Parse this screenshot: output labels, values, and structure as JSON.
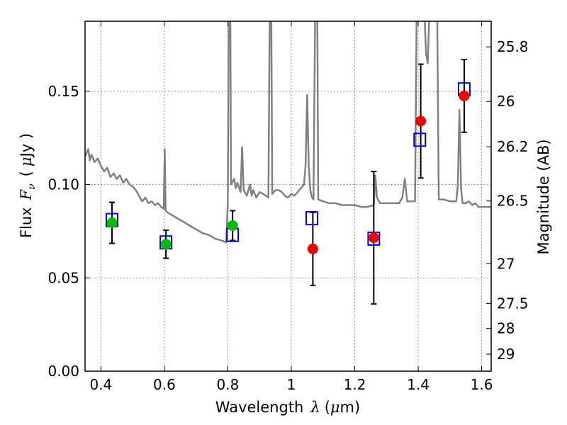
{
  "chart_data": {
    "type": "scatter",
    "xlabel_text": "Wavelength",
    "xlabel_symbol": "λ",
    "xlabel_unit_open": "(",
    "xlabel_unit_mu": "μ",
    "xlabel_unit_rest": "m)",
    "ylabel_text": "Flux",
    "ylabel_symbol": "F",
    "ylabel_subscript": "ν",
    "ylabel_unit_open": "(",
    "ylabel_unit_mu": "μ",
    "ylabel_unit_rest": "Jy )",
    "y2label": "Magnitude (AB)",
    "xlim": [
      0.35,
      1.63
    ],
    "ylim": [
      0.0,
      0.1875
    ],
    "grid": true,
    "x_ticks": [
      {
        "value": 0.4,
        "label": "0.4"
      },
      {
        "value": 0.6,
        "label": "0.6"
      },
      {
        "value": 0.8,
        "label": "0.8"
      },
      {
        "value": 1.0,
        "label": "1"
      },
      {
        "value": 1.2,
        "label": "1.2"
      },
      {
        "value": 1.4,
        "label": "1.4"
      },
      {
        "value": 1.6,
        "label": "1.6"
      }
    ],
    "y_ticks": [
      {
        "value": 0.0,
        "label": "0.00"
      },
      {
        "value": 0.05,
        "label": "0.05"
      },
      {
        "value": 0.1,
        "label": "0.10"
      },
      {
        "value": 0.15,
        "label": "0.15"
      }
    ],
    "y2_ticks": [
      {
        "mag": 25.8,
        "label": "25.8"
      },
      {
        "mag": 26.0,
        "label": "26"
      },
      {
        "mag": 26.2,
        "label": "26.2"
      },
      {
        "mag": 26.5,
        "label": "26.5"
      },
      {
        "mag": 27.0,
        "label": "27"
      },
      {
        "mag": 27.5,
        "label": "27.5"
      },
      {
        "mag": 28.0,
        "label": "28"
      },
      {
        "mag": 29.0,
        "label": "29"
      }
    ],
    "colors": {
      "sed": "#808080",
      "model": "#0000cc",
      "green": "#00bb00",
      "red": "#ee0000",
      "errorbar": "#000000",
      "grid": "#555555"
    },
    "sed_model": [
      [
        0.35,
        0.115
      ],
      [
        0.36,
        0.119
      ],
      [
        0.365,
        0.113
      ],
      [
        0.37,
        0.116
      ],
      [
        0.38,
        0.112
      ],
      [
        0.39,
        0.114
      ],
      [
        0.4,
        0.11
      ],
      [
        0.41,
        0.107
      ],
      [
        0.42,
        0.109
      ],
      [
        0.43,
        0.104
      ],
      [
        0.44,
        0.106
      ],
      [
        0.45,
        0.103
      ],
      [
        0.46,
        0.105
      ],
      [
        0.47,
        0.101
      ],
      [
        0.48,
        0.103
      ],
      [
        0.49,
        0.1
      ],
      [
        0.5,
        0.099
      ],
      [
        0.51,
        0.097
      ],
      [
        0.52,
        0.094
      ],
      [
        0.53,
        0.091
      ],
      [
        0.54,
        0.093
      ],
      [
        0.55,
        0.09
      ],
      [
        0.56,
        0.091
      ],
      [
        0.57,
        0.089
      ],
      [
        0.58,
        0.09
      ],
      [
        0.59,
        0.088
      ],
      [
        0.598,
        0.087
      ],
      [
        0.601,
        0.119
      ],
      [
        0.604,
        0.086
      ],
      [
        0.61,
        0.085
      ],
      [
        0.62,
        0.084
      ],
      [
        0.64,
        0.082
      ],
      [
        0.66,
        0.08
      ],
      [
        0.68,
        0.078
      ],
      [
        0.7,
        0.076
      ],
      [
        0.72,
        0.074
      ],
      [
        0.74,
        0.073
      ],
      [
        0.76,
        0.071
      ],
      [
        0.78,
        0.07
      ],
      [
        0.795,
        0.069
      ],
      [
        0.8,
        0.09
      ],
      [
        0.803,
        0.19
      ],
      [
        0.808,
        0.19
      ],
      [
        0.81,
        0.1
      ],
      [
        0.82,
        0.103
      ],
      [
        0.825,
        0.098
      ],
      [
        0.83,
        0.101
      ],
      [
        0.84,
        0.096
      ],
      [
        0.845,
        0.12
      ],
      [
        0.85,
        0.097
      ],
      [
        0.86,
        0.094
      ],
      [
        0.87,
        0.1
      ],
      [
        0.875,
        0.094
      ],
      [
        0.88,
        0.097
      ],
      [
        0.89,
        0.093
      ],
      [
        0.9,
        0.096
      ],
      [
        0.91,
        0.095
      ],
      [
        0.92,
        0.094
      ],
      [
        0.928,
        0.093
      ],
      [
        0.932,
        0.19
      ],
      [
        0.937,
        0.19
      ],
      [
        0.94,
        0.095
      ],
      [
        0.95,
        0.097
      ],
      [
        0.96,
        0.097
      ],
      [
        0.97,
        0.096
      ],
      [
        0.98,
        0.094
      ],
      [
        0.99,
        0.093
      ],
      [
        1.0,
        0.095
      ],
      [
        1.01,
        0.094
      ],
      [
        1.02,
        0.096
      ],
      [
        1.03,
        0.098
      ],
      [
        1.04,
        0.1
      ],
      [
        1.045,
        0.11
      ],
      [
        1.05,
        0.148
      ],
      [
        1.055,
        0.11
      ],
      [
        1.06,
        0.097
      ],
      [
        1.065,
        0.093
      ],
      [
        1.07,
        0.092
      ],
      [
        1.075,
        0.19
      ],
      [
        1.082,
        0.19
      ],
      [
        1.085,
        0.092
      ],
      [
        1.1,
        0.091
      ],
      [
        1.12,
        0.09
      ],
      [
        1.14,
        0.09
      ],
      [
        1.16,
        0.089
      ],
      [
        1.18,
        0.089
      ],
      [
        1.2,
        0.089
      ],
      [
        1.22,
        0.088
      ],
      [
        1.24,
        0.088
      ],
      [
        1.26,
        0.089
      ],
      [
        1.265,
        0.105
      ],
      [
        1.27,
        0.093
      ],
      [
        1.28,
        0.09
      ],
      [
        1.3,
        0.09
      ],
      [
        1.32,
        0.09
      ],
      [
        1.34,
        0.09
      ],
      [
        1.35,
        0.093
      ],
      [
        1.358,
        0.103
      ],
      [
        1.365,
        0.091
      ],
      [
        1.38,
        0.091
      ],
      [
        1.39,
        0.091
      ],
      [
        1.395,
        0.19
      ],
      [
        1.4,
        0.19
      ],
      [
        1.405,
        0.19
      ],
      [
        1.41,
        0.19
      ],
      [
        1.415,
        0.19
      ],
      [
        1.42,
        0.19
      ],
      [
        1.425,
        0.17
      ],
      [
        1.43,
        0.165
      ],
      [
        1.435,
        0.19
      ],
      [
        1.44,
        0.19
      ],
      [
        1.45,
        0.19
      ],
      [
        1.46,
        0.19
      ],
      [
        1.465,
        0.092
      ],
      [
        1.48,
        0.092
      ],
      [
        1.5,
        0.091
      ],
      [
        1.52,
        0.091
      ],
      [
        1.525,
        0.1
      ],
      [
        1.53,
        0.14
      ],
      [
        1.535,
        0.098
      ],
      [
        1.54,
        0.09
      ],
      [
        1.55,
        0.09
      ],
      [
        1.56,
        0.091
      ],
      [
        1.57,
        0.089
      ],
      [
        1.58,
        0.09
      ],
      [
        1.59,
        0.088
      ],
      [
        1.6,
        0.088
      ],
      [
        1.61,
        0.088
      ],
      [
        1.62,
        0.088
      ],
      [
        1.63,
        0.088
      ]
    ],
    "model_points": [
      {
        "x": 0.435,
        "y": 0.081
      },
      {
        "x": 0.605,
        "y": 0.069
      },
      {
        "x": 0.815,
        "y": 0.073
      },
      {
        "x": 1.065,
        "y": 0.082
      },
      {
        "x": 1.26,
        "y": 0.071
      },
      {
        "x": 1.405,
        "y": 0.124
      },
      {
        "x": 1.545,
        "y": 0.151
      }
    ],
    "observed": [
      {
        "x": 0.435,
        "y": 0.0795,
        "yerr": 0.011,
        "color": "green"
      },
      {
        "x": 0.605,
        "y": 0.068,
        "yerr": 0.0075,
        "color": "green"
      },
      {
        "x": 0.815,
        "y": 0.078,
        "yerr": 0.008,
        "color": "green"
      },
      {
        "x": 1.068,
        "y": 0.0655,
        "yerr": 0.0195,
        "color": "red"
      },
      {
        "x": 1.26,
        "y": 0.0715,
        "yerr": 0.0355,
        "color": "red"
      },
      {
        "x": 1.408,
        "y": 0.134,
        "yerr": 0.0305,
        "color": "red"
      },
      {
        "x": 1.545,
        "y": 0.1475,
        "yerr": 0.0195,
        "color": "red"
      }
    ]
  }
}
